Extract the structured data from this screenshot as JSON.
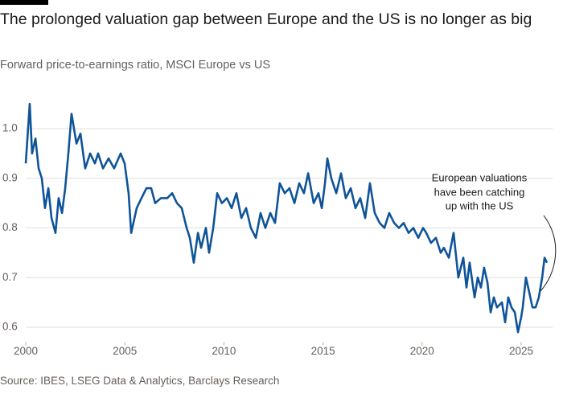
{
  "chart_data": {
    "type": "line",
    "title": "The prolonged valuation gap between Europe and the US is no longer as big",
    "subtitle": "Forward price-to-earnings ratio, MSCI Europe vs US",
    "source": "Source: IBES, LSEG Data & Analytics, Barclays Research",
    "annotation": [
      "European valuations",
      "have been catching",
      "up with the US"
    ],
    "xlim": [
      1999.5,
      2026.6
    ],
    "xticks": [
      2000,
      2005,
      2010,
      2015,
      2020,
      2025
    ],
    "ylim": [
      0.57,
      1.07
    ],
    "yticks": [
      0.6,
      0.7,
      0.8,
      0.9,
      {
        "value": 1,
        "label": "1.0"
      }
    ],
    "grid": true,
    "series": [
      {
        "color": "#0f5499",
        "x": [
          2000.0,
          2000.2,
          2000.32,
          2000.49,
          2000.65,
          2000.81,
          2000.97,
          2001.14,
          2001.3,
          2001.5,
          2001.66,
          2001.83,
          2001.99,
          2002.15,
          2002.31,
          2002.56,
          2002.76,
          2003.0,
          2003.25,
          2003.49,
          2003.65,
          2003.9,
          2004.18,
          2004.46,
          2004.79,
          2004.99,
          2005.19,
          2005.32,
          2005.6,
          2005.84,
          2006.09,
          2006.33,
          2006.53,
          2006.82,
          2007.14,
          2007.39,
          2007.63,
          2007.87,
          2008.12,
          2008.28,
          2008.48,
          2008.69,
          2008.85,
          2009.09,
          2009.25,
          2009.46,
          2009.66,
          2009.9,
          2010.15,
          2010.39,
          2010.63,
          2010.88,
          2011.12,
          2011.36,
          2011.61,
          2011.85,
          2012.09,
          2012.34,
          2012.58,
          2012.82,
          2013.07,
          2013.31,
          2013.56,
          2013.8,
          2014.04,
          2014.25,
          2014.53,
          2014.77,
          2014.94,
          2015.1,
          2015.22,
          2015.42,
          2015.67,
          2015.91,
          2016.15,
          2016.4,
          2016.64,
          2016.88,
          2017.13,
          2017.37,
          2017.61,
          2017.86,
          2018.1,
          2018.34,
          2018.59,
          2018.83,
          2019.07,
          2019.32,
          2019.56,
          2019.81,
          2020.05,
          2020.21,
          2020.45,
          2020.7,
          2020.94,
          2021.1,
          2021.35,
          2021.59,
          2021.83,
          2022.08,
          2022.24,
          2022.4,
          2022.65,
          2022.81,
          2022.97,
          2023.13,
          2023.3,
          2023.46,
          2023.62,
          2023.78,
          2024.03,
          2024.19,
          2024.35,
          2024.51,
          2024.68,
          2024.84,
          2025.0,
          2025.08,
          2025.24,
          2025.41,
          2025.57,
          2025.73,
          2025.89,
          2026.06,
          2026.18,
          2026.3
        ],
        "values": [
          0.93,
          1.05,
          0.95,
          0.98,
          0.92,
          0.9,
          0.84,
          0.88,
          0.82,
          0.79,
          0.86,
          0.83,
          0.88,
          0.95,
          1.03,
          0.97,
          0.99,
          0.92,
          0.95,
          0.93,
          0.95,
          0.92,
          0.94,
          0.92,
          0.95,
          0.93,
          0.87,
          0.79,
          0.84,
          0.86,
          0.88,
          0.88,
          0.85,
          0.86,
          0.86,
          0.87,
          0.85,
          0.84,
          0.8,
          0.78,
          0.73,
          0.79,
          0.76,
          0.8,
          0.75,
          0.8,
          0.87,
          0.85,
          0.86,
          0.84,
          0.87,
          0.82,
          0.84,
          0.8,
          0.78,
          0.83,
          0.8,
          0.83,
          0.81,
          0.89,
          0.87,
          0.88,
          0.85,
          0.89,
          0.87,
          0.91,
          0.85,
          0.87,
          0.84,
          0.89,
          0.94,
          0.9,
          0.87,
          0.91,
          0.86,
          0.88,
          0.84,
          0.86,
          0.82,
          0.89,
          0.83,
          0.81,
          0.8,
          0.83,
          0.81,
          0.8,
          0.81,
          0.79,
          0.8,
          0.78,
          0.8,
          0.79,
          0.77,
          0.78,
          0.75,
          0.76,
          0.74,
          0.79,
          0.7,
          0.74,
          0.68,
          0.73,
          0.66,
          0.7,
          0.68,
          0.72,
          0.69,
          0.63,
          0.66,
          0.64,
          0.65,
          0.61,
          0.66,
          0.64,
          0.63,
          0.59,
          0.62,
          0.64,
          0.7,
          0.67,
          0.64,
          0.64,
          0.66,
          0.7,
          0.74,
          0.73
        ]
      }
    ]
  }
}
